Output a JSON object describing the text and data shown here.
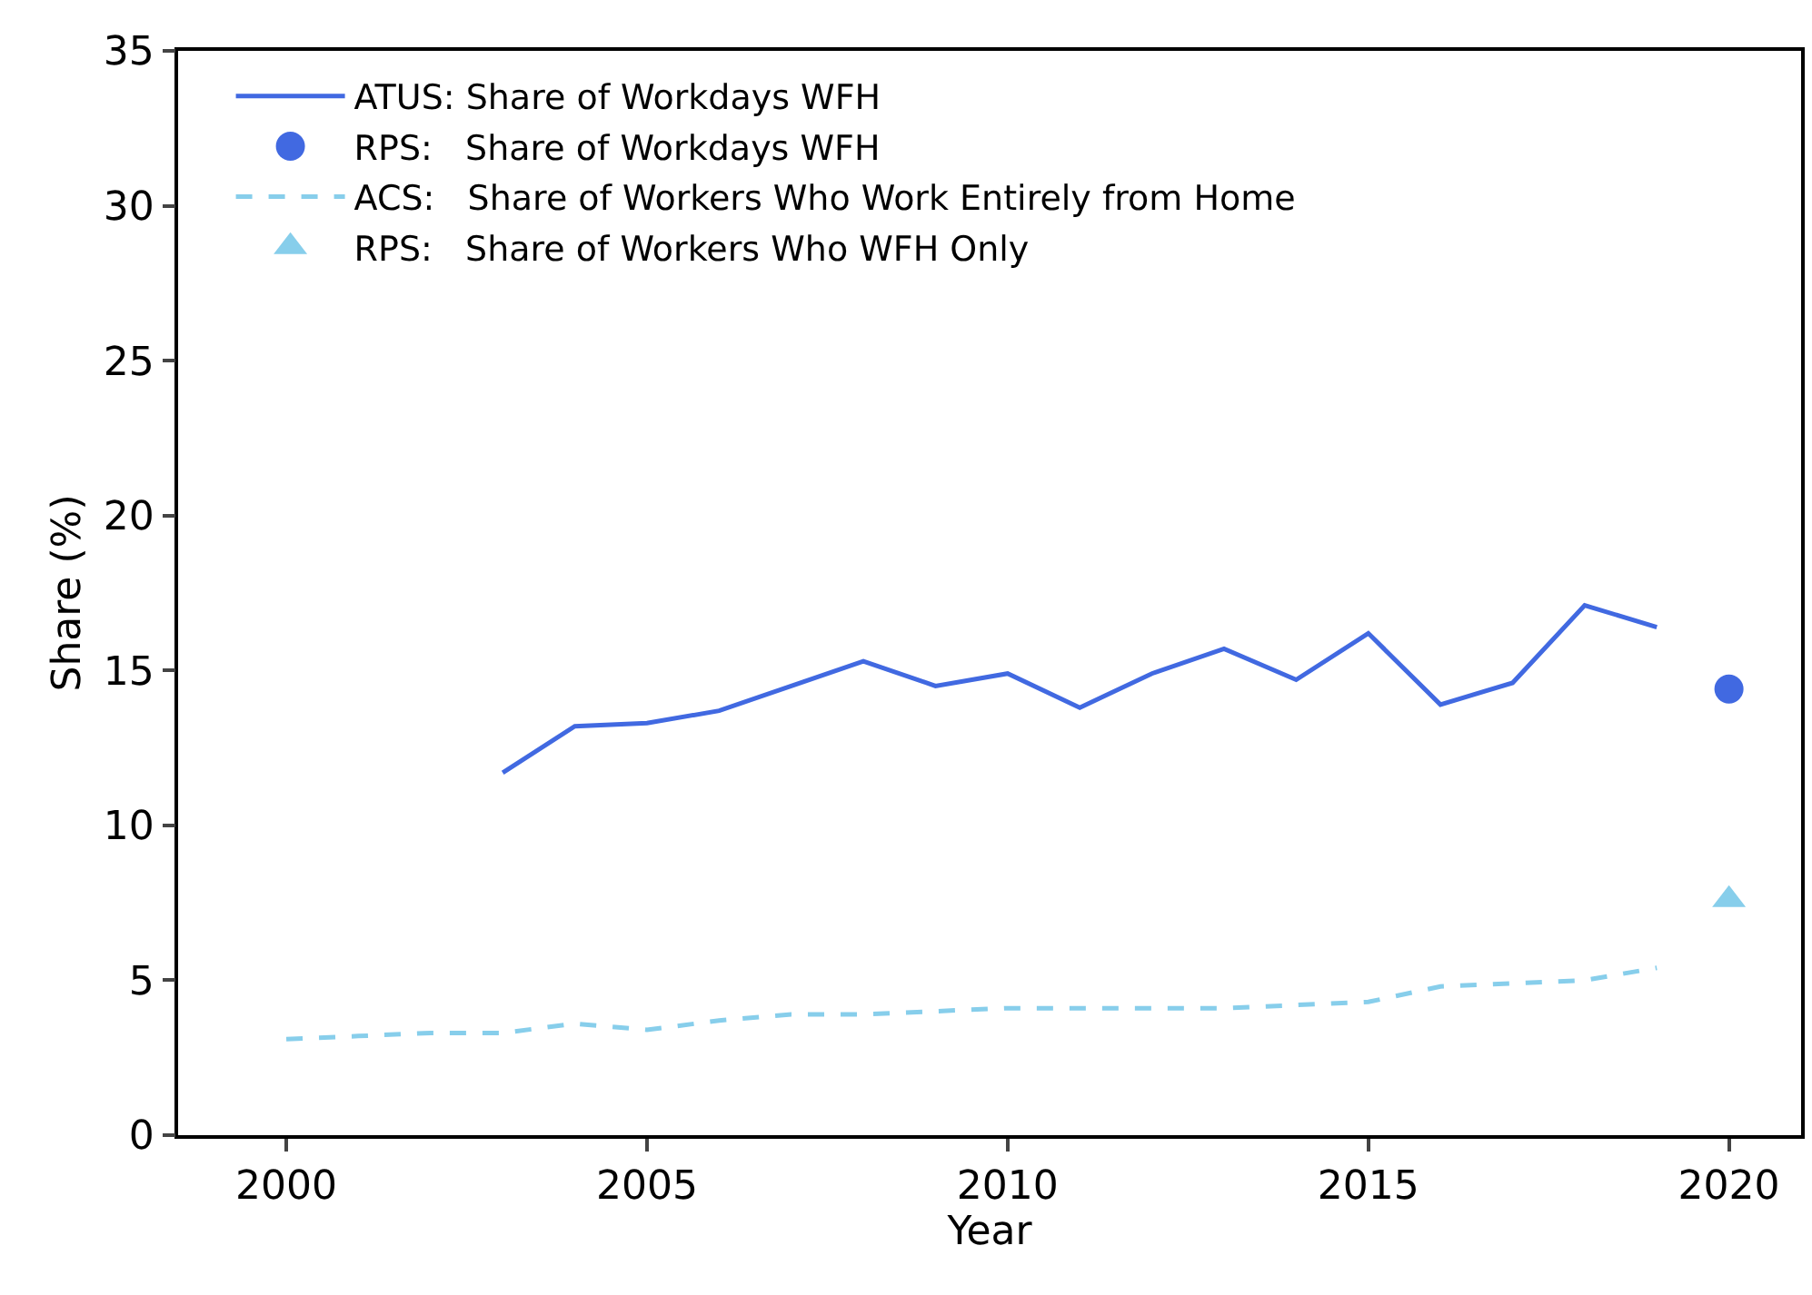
{
  "chart_data": {
    "type": "line",
    "xlabel": "Year",
    "ylabel": "Share (%)",
    "xlim": [
      1998.5,
      2021
    ],
    "xticks": [
      2000,
      2005,
      2010,
      2015,
      2020
    ],
    "ylim": [
      0,
      35
    ],
    "yticks": [
      0,
      5,
      10,
      15,
      20,
      25,
      30,
      35
    ],
    "grid": false,
    "legend": "top left",
    "series": [
      {
        "name": "ATUS: Share of Workdays WFH",
        "color": "#4169e1",
        "line_style": "solid",
        "marker": "none",
        "x": [
          2003,
          2004,
          2005,
          2006,
          2007,
          2008,
          2009,
          2010,
          2011,
          2012,
          2013,
          2014,
          2015,
          2016,
          2017,
          2018,
          2019
        ],
        "values": [
          11.7,
          13.2,
          13.3,
          13.7,
          14.5,
          15.3,
          14.5,
          14.9,
          13.8,
          14.9,
          15.7,
          14.7,
          16.2,
          13.9,
          14.6,
          17.1,
          16.4
        ]
      },
      {
        "name": "RPS:   Share of Workdays WFH",
        "type": "scatter",
        "color": "#4169e1",
        "marker": "circle",
        "x": [
          2020
        ],
        "values": [
          14.4
        ]
      },
      {
        "name": "ACS:   Share of Workers Who Work Entirely from Home",
        "color": "#87ceeb",
        "line_style": "dashed",
        "marker": "none",
        "x": [
          2000,
          2001,
          2002,
          2003,
          2004,
          2005,
          2006,
          2007,
          2008,
          2009,
          2010,
          2011,
          2012,
          2013,
          2014,
          2015,
          2016,
          2017,
          2018,
          2019
        ],
        "values": [
          3.1,
          3.2,
          3.3,
          3.3,
          3.6,
          3.4,
          3.7,
          3.9,
          3.9,
          4.0,
          4.1,
          4.1,
          4.1,
          4.1,
          4.2,
          4.3,
          4.8,
          4.9,
          5.0,
          5.4
        ]
      },
      {
        "name": "RPS:   Share of Workers Who WFH Only",
        "type": "scatter",
        "color": "#87ceeb",
        "marker": "triangle",
        "x": [
          2020
        ],
        "values": [
          7.6
        ]
      }
    ]
  }
}
